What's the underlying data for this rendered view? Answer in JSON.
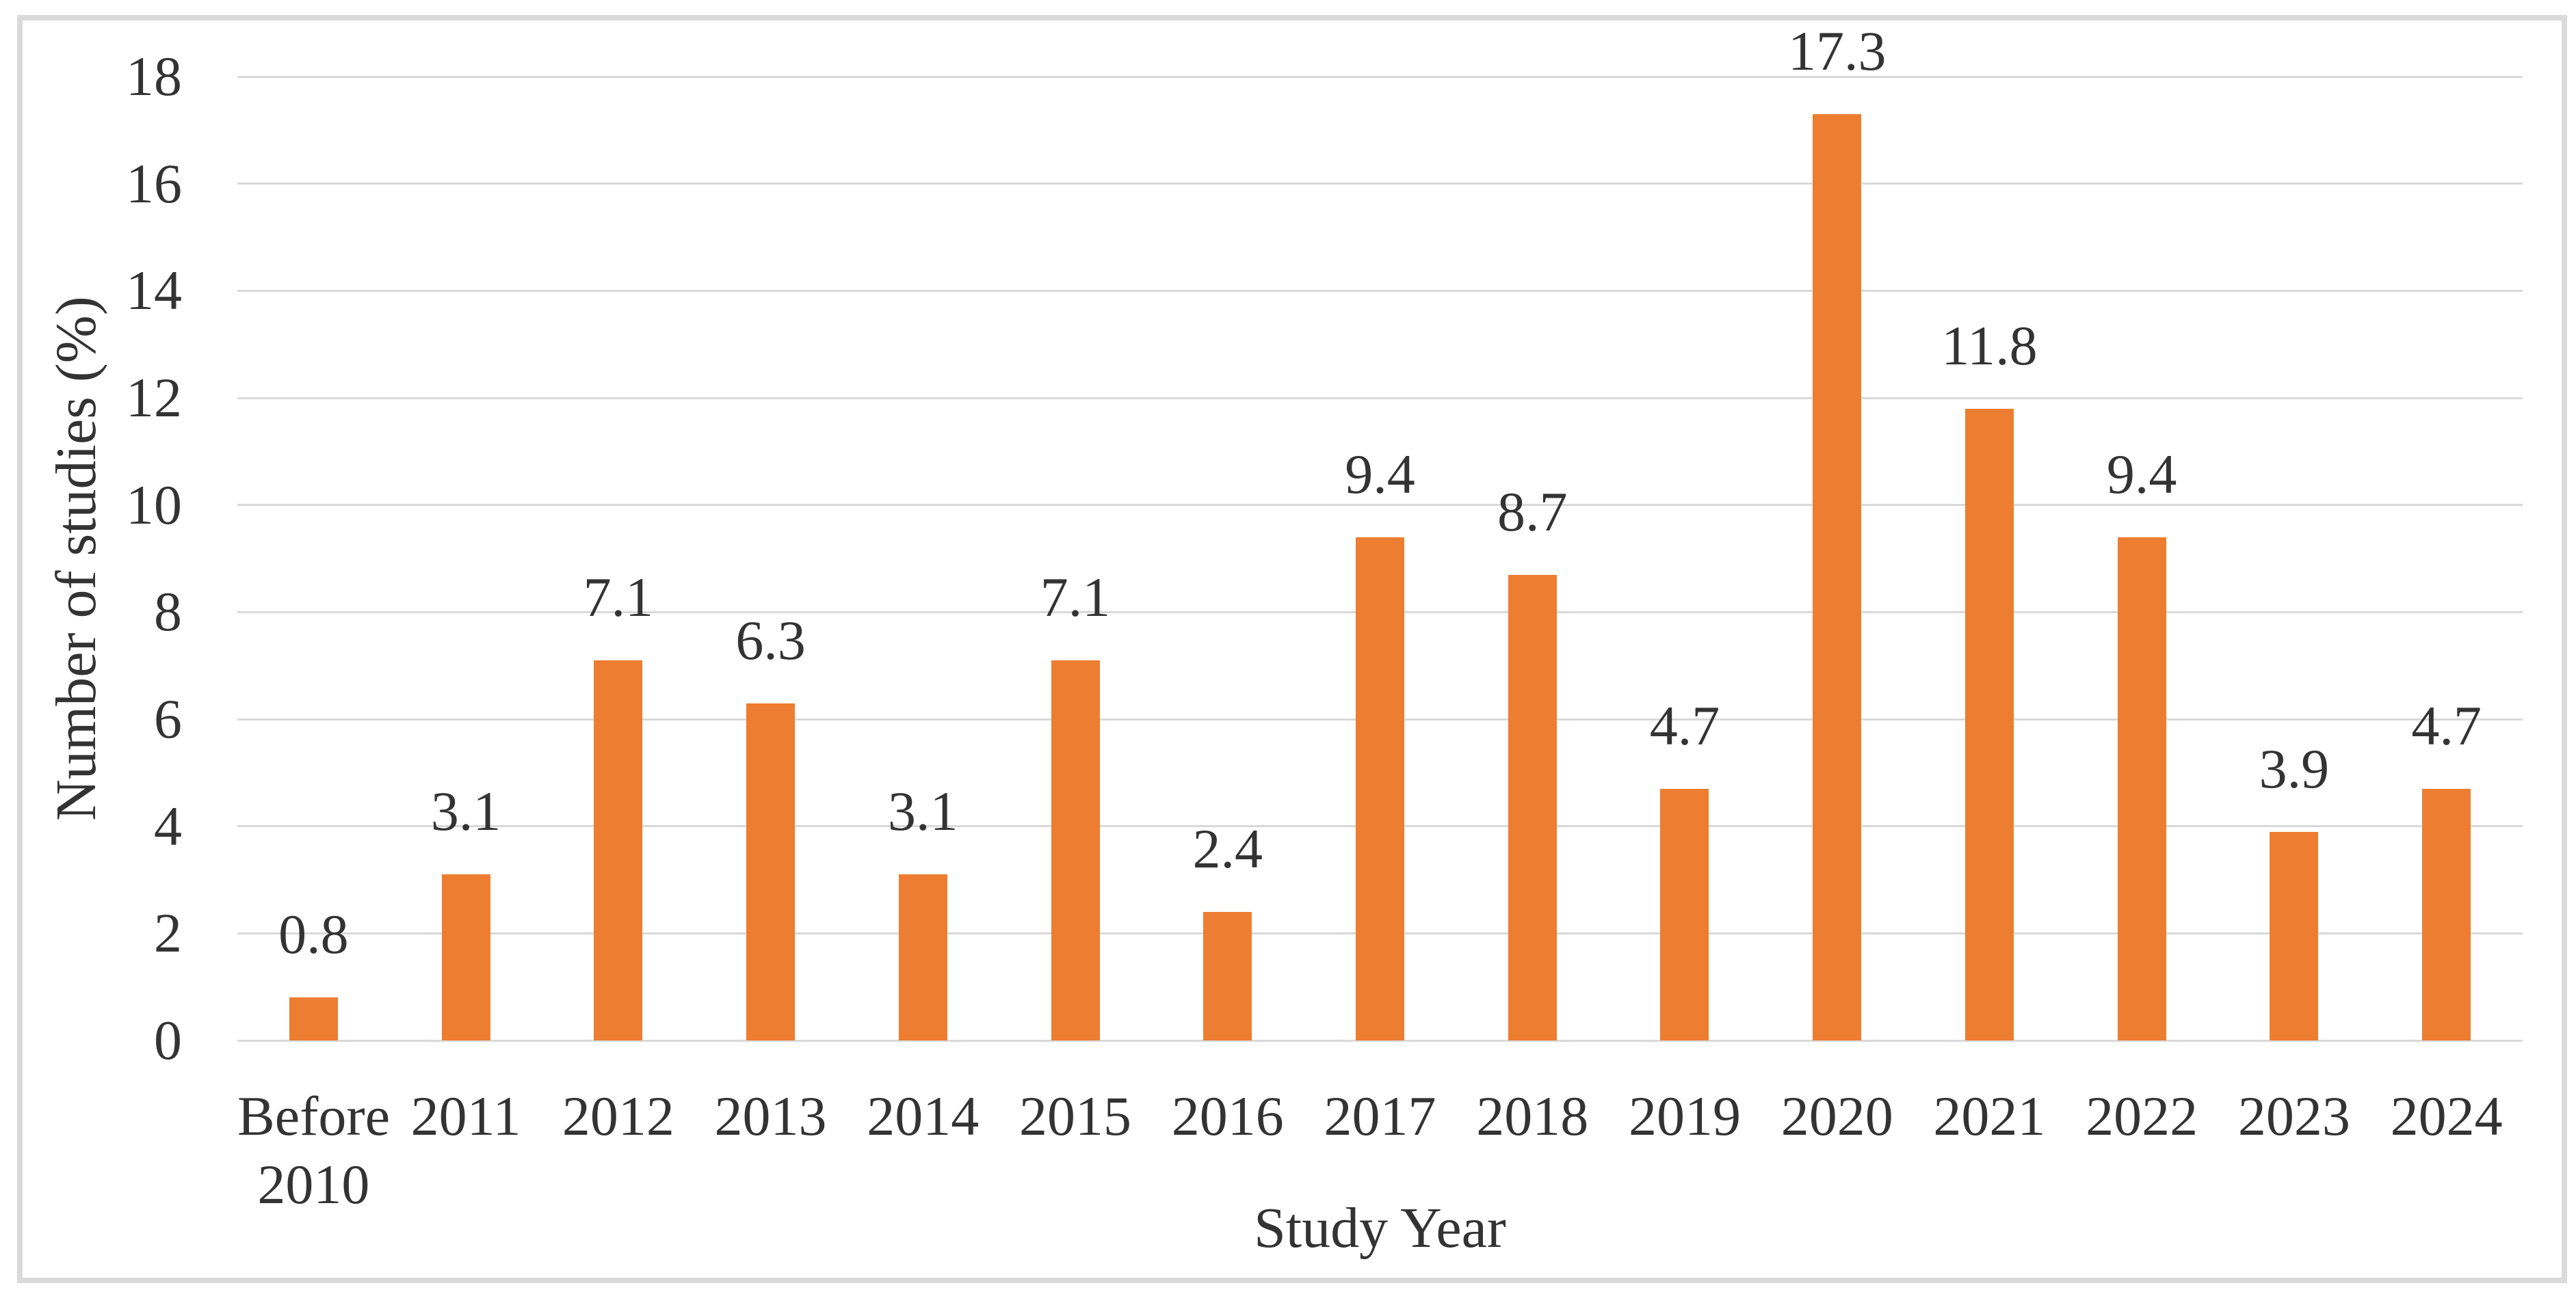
{
  "chart_data": {
    "type": "bar",
    "title": "",
    "categories": [
      "Before 2010",
      "2011",
      "2012",
      "2013",
      "2014",
      "2015",
      "2016",
      "2017",
      "2018",
      "2019",
      "2020",
      "2021",
      "2022",
      "2023",
      "2024"
    ],
    "values": [
      0.8,
      3.1,
      7.1,
      6.3,
      3.1,
      7.1,
      2.4,
      9.4,
      8.7,
      4.7,
      17.3,
      11.8,
      9.4,
      3.9,
      4.7
    ],
    "value_labels": [
      "0.8",
      "3.1",
      "7.1",
      "6.3",
      "3.1",
      "7.1",
      "2.4",
      "9.4",
      "8.7",
      "4.7",
      "17.3",
      "11.8",
      "9.4",
      "3.9",
      "4.7"
    ],
    "xlabel": "Study Year",
    "ylabel": "Number of studies (%)",
    "ylim": [
      0,
      18
    ],
    "yticks": [
      0,
      2,
      4,
      6,
      8,
      10,
      12,
      14,
      16,
      18
    ],
    "grid": "horizontal",
    "legend": "none",
    "bar_color": "#ED7D31",
    "gridline_color": "#D9D9D9",
    "text_color": "#333333",
    "figure_border_color": "#DADADA"
  }
}
